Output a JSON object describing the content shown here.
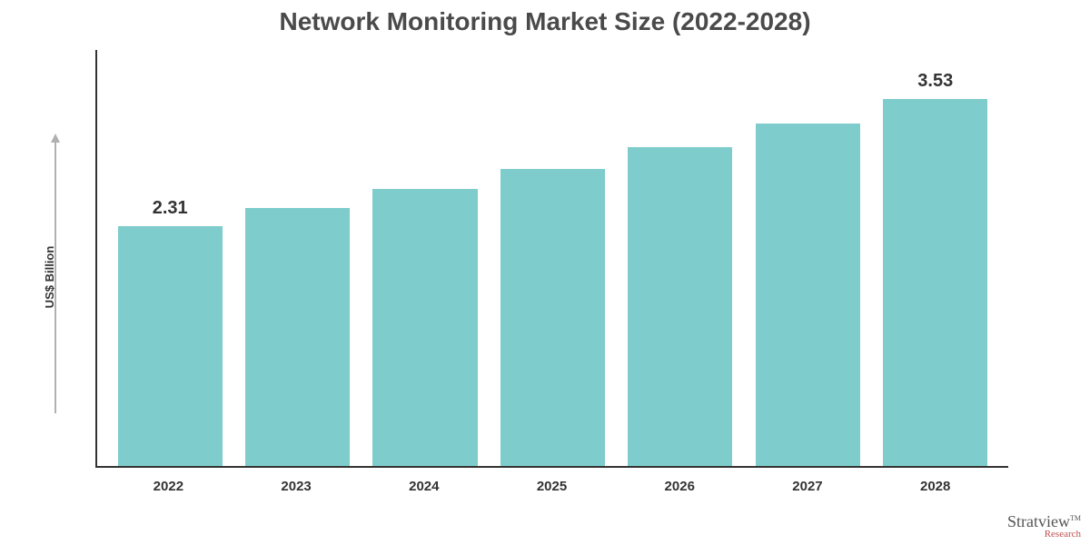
{
  "title": {
    "text": "Network Monitoring Market Size (2022-2028)",
    "color": "#4a4a4a",
    "fontsize": 28,
    "fontweight": 700
  },
  "chart": {
    "type": "bar",
    "ylabel": "US$ Billion",
    "ylabel_fontsize": 13,
    "axis_color": "#333333",
    "arrow_color": "#b0b0b0",
    "background_color": "#ffffff",
    "bar_color": "#7ecccb",
    "bar_width_ratio": 0.82,
    "ylim": [
      0,
      4.0
    ],
    "categories": [
      "2022",
      "2023",
      "2024",
      "2025",
      "2026",
      "2027",
      "2028"
    ],
    "values": [
      2.31,
      2.48,
      2.66,
      2.86,
      3.07,
      3.29,
      3.53
    ],
    "value_labels": [
      "2.31",
      "",
      "",
      "",
      "",
      "",
      "3.53"
    ],
    "value_label_fontsize": 20,
    "value_label_color": "#333333",
    "xlabel_fontsize": 15,
    "xlabel_color": "#333333"
  },
  "watermark": {
    "main": "Stratview",
    "sub": "Research",
    "tm": "TM",
    "main_color": "#555555",
    "sub_color": "#c05050"
  }
}
